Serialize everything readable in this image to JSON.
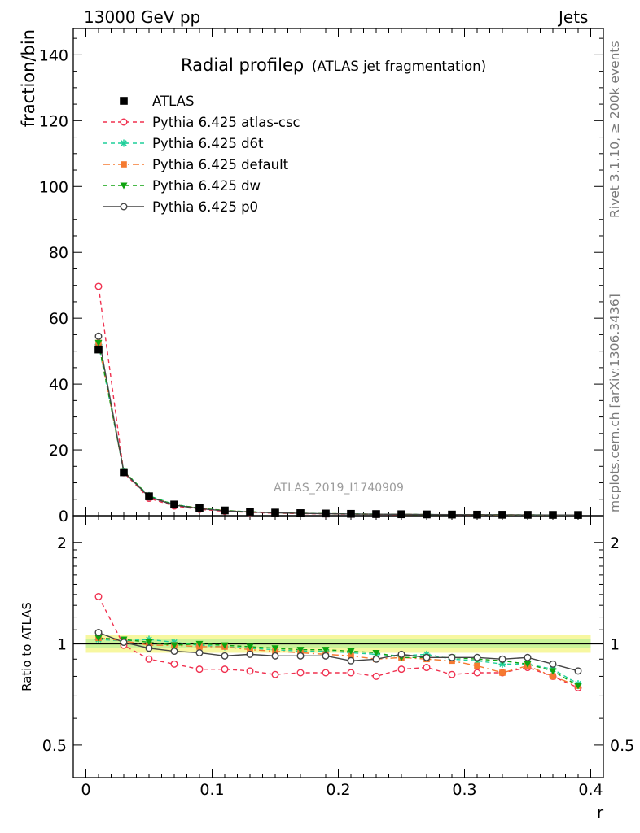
{
  "header": {
    "left": "13000 GeV pp",
    "right": "Jets"
  },
  "side_text": {
    "top": "Rivet 3.1.10, ≥ 200k events",
    "bottom": "mcplots.cern.ch [arXiv:1306.3436]"
  },
  "chart_data": {
    "type": "line",
    "title": "Radial profileρ",
    "subtitle": "(ATLAS jet fragmentation)",
    "analysis_label": "ATLAS_2019_I1740909",
    "xlabel": "r",
    "ylabel_main": "fraction/bin",
    "ylabel_ratio": "Ratio to ATLAS",
    "xlim": [
      -0.01,
      0.41
    ],
    "main_ylim": [
      0,
      148
    ],
    "ratio_ylim": [
      0.4,
      2.4
    ],
    "ratio_scale": "log",
    "x_ticks": [
      "0",
      "0.1",
      "0.2",
      "0.3",
      "0.4"
    ],
    "main_y_ticks": [
      "0",
      "20",
      "40",
      "60",
      "80",
      "100",
      "120",
      "140"
    ],
    "ratio_y_ticks": [
      "0.5",
      "1",
      "2"
    ],
    "legend_position": "top-left",
    "x": [
      0.01,
      0.03,
      0.05,
      0.07,
      0.09,
      0.11,
      0.13,
      0.15,
      0.17,
      0.19,
      0.21,
      0.23,
      0.25,
      0.27,
      0.29,
      0.31,
      0.33,
      0.35,
      0.37,
      0.39
    ],
    "data": {
      "name": "ATLAS",
      "values": [
        50.5,
        13.2,
        5.9,
        3.4,
        2.3,
        1.6,
        1.2,
        0.95,
        0.78,
        0.66,
        0.56,
        0.49,
        0.43,
        0.38,
        0.34,
        0.31,
        0.28,
        0.26,
        0.24,
        0.22
      ],
      "band_inner": 0.03,
      "band_outer": 0.06
    },
    "series": [
      {
        "name": "Pythia 6.425 atlas-csc",
        "color": "#f0304f",
        "marker": "open-circle",
        "dash": "5,4",
        "ratio": [
          1.38,
          0.99,
          0.9,
          0.87,
          0.84,
          0.84,
          0.83,
          0.81,
          0.82,
          0.82,
          0.82,
          0.8,
          0.84,
          0.85,
          0.81,
          0.82,
          0.82,
          0.85,
          0.8,
          0.74
        ]
      },
      {
        "name": "Pythia 6.425 d6t",
        "color": "#1fcf9a",
        "marker": "star",
        "dash": "5,4",
        "ratio": [
          1.03,
          1.02,
          1.03,
          1.01,
          0.99,
          0.98,
          0.97,
          0.96,
          0.95,
          0.95,
          0.94,
          0.93,
          0.92,
          0.93,
          0.9,
          0.89,
          0.87,
          0.87,
          0.84,
          0.76
        ]
      },
      {
        "name": "Pythia 6.425 default",
        "color": "#f57a30",
        "marker": "square",
        "dash": "8,4,2,4",
        "ratio": [
          1.04,
          1.02,
          0.99,
          0.99,
          0.98,
          0.98,
          0.96,
          0.95,
          0.94,
          0.93,
          0.92,
          0.9,
          0.91,
          0.9,
          0.89,
          0.86,
          0.82,
          0.86,
          0.8,
          0.75
        ]
      },
      {
        "name": "Pythia 6.425 dw",
        "color": "#0fa30f",
        "marker": "triangle-down",
        "dash": "5,4",
        "ratio": [
          1.04,
          1.03,
          1.01,
          0.99,
          1.0,
          0.99,
          0.98,
          0.97,
          0.96,
          0.96,
          0.95,
          0.94,
          0.91,
          0.91,
          0.91,
          0.9,
          0.89,
          0.87,
          0.83,
          0.75
        ]
      },
      {
        "name": "Pythia 6.425 p0",
        "color": "#444444",
        "marker": "open-circle",
        "dash": "",
        "ratio": [
          1.08,
          1.01,
          0.97,
          0.95,
          0.94,
          0.92,
          0.93,
          0.92,
          0.92,
          0.92,
          0.89,
          0.9,
          0.93,
          0.91,
          0.91,
          0.91,
          0.9,
          0.91,
          0.87,
          0.83
        ]
      }
    ]
  }
}
